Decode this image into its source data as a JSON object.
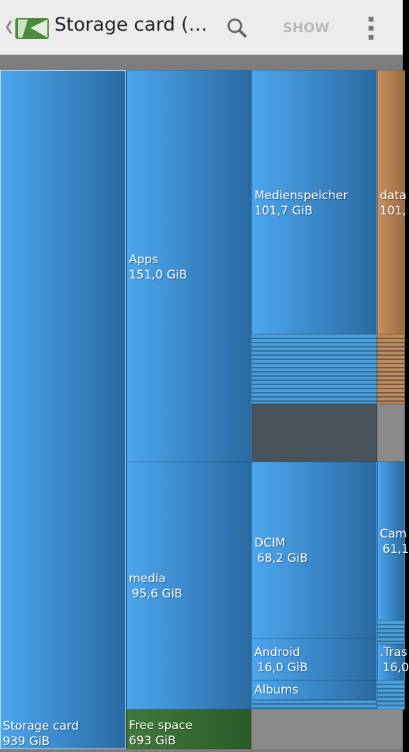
{
  "app_bar": {
    "title": "Storage card (…",
    "action": "SHOW"
  },
  "treemap": {
    "blocks": [
      {
        "label": "Storage card",
        "size": "939 GiB"
      },
      {
        "label": "Apps",
        "size": "151,0 GiB"
      },
      {
        "label": "Medienspeicher",
        "size": "101,7 GiB"
      },
      {
        "label": "data",
        "size": "101,"
      },
      {
        "label": "media",
        "size": "95,6 GiB"
      },
      {
        "label": "DCIM",
        "size": "68,2 GiB"
      },
      {
        "label": "Cam",
        "size": "61,1"
      },
      {
        "label": "Android",
        "size": "16,0 GiB"
      },
      {
        "label": ".Tras",
        "size": "16,0"
      },
      {
        "label": "Albums"
      },
      {
        "label": "Free space",
        "size": "693 GiB"
      }
    ]
  }
}
